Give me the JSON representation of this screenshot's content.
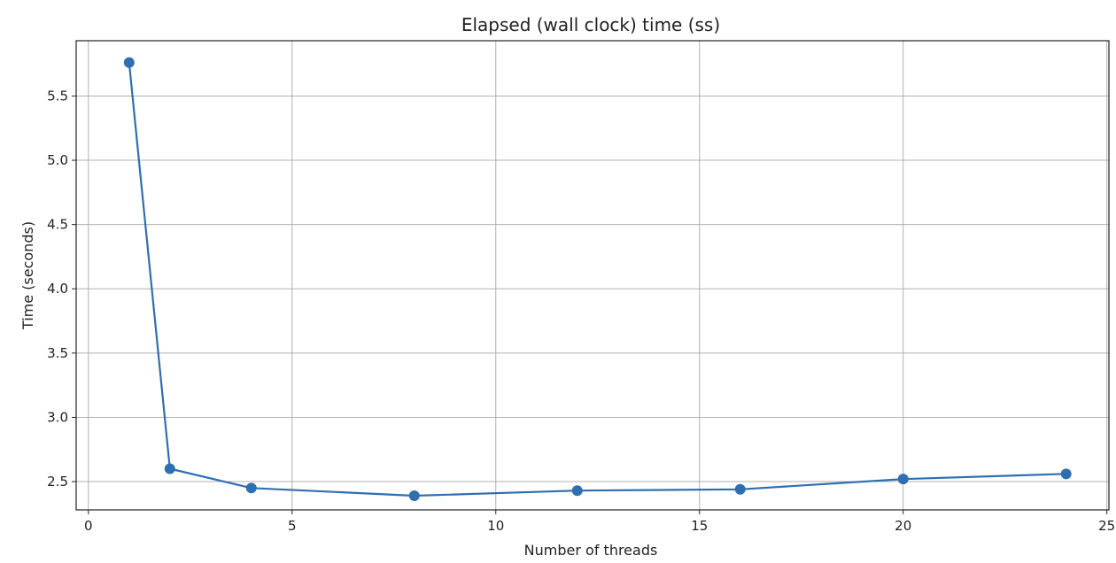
{
  "chart_data": {
    "type": "line",
    "title": "Elapsed (wall clock) time (ss)",
    "xlabel": "Number of threads",
    "ylabel": "Time (seconds)",
    "xlim": [
      -0.3,
      25.05
    ],
    "ylim": [
      2.28,
      5.93
    ],
    "xticks": [
      0,
      5,
      10,
      15,
      20,
      25
    ],
    "yticks": [
      2.5,
      3.0,
      3.5,
      4.0,
      4.5,
      5.0,
      5.5
    ],
    "xtick_labels": [
      "0",
      "5",
      "10",
      "15",
      "20",
      "25"
    ],
    "ytick_labels": [
      "2.5",
      "3.0",
      "3.5",
      "4.0",
      "4.5",
      "5.0",
      "5.5"
    ],
    "grid": true,
    "series": [
      {
        "x": [
          1,
          2,
          4,
          8,
          12,
          16,
          20,
          24
        ],
        "y": [
          5.76,
          2.6,
          2.45,
          2.39,
          2.43,
          2.44,
          2.52,
          2.56
        ],
        "color": "#2f6fb0",
        "marker": "circle"
      }
    ]
  }
}
